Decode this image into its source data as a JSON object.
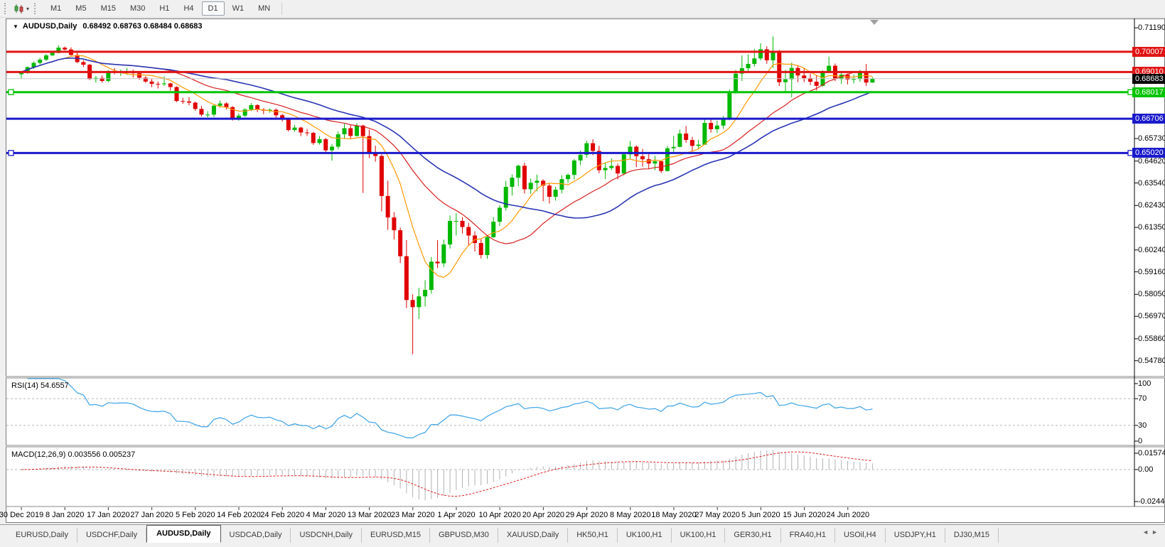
{
  "icons": {
    "chart_menu": "▼",
    "caret_down": "▾",
    "tab_scroll_left": "◄",
    "tab_scroll_right": "►"
  },
  "toolbar": {
    "timeframes": [
      "M1",
      "M5",
      "M15",
      "M30",
      "H1",
      "H4",
      "D1",
      "W1",
      "MN"
    ],
    "active_timeframe": "D1"
  },
  "chart_header": {
    "symbol_period": "AUDUSD,Daily",
    "open": "0.68492",
    "high": "0.68763",
    "low": "0.68484",
    "close": "0.68683",
    "ohlc_text": "0.68492 0.68763 0.68484 0.68683"
  },
  "rsi_panel": {
    "label": "RSI(14) 54.6557",
    "name": "RSI(14)",
    "value": "54.6557",
    "axis_labels": [
      "100",
      "70",
      "30",
      "0"
    ],
    "axis_values": [
      100,
      70,
      30,
      0
    ],
    "levels": [
      70,
      30
    ]
  },
  "macd_panel": {
    "label": "MACD(12,26,9) 0.003556 0.005237",
    "macd_value": "0.003556",
    "signal_value": "0.005237",
    "axis_labels": [
      "0.015741",
      "0.00",
      "-0.024411"
    ],
    "axis_values": [
      0.015741,
      0,
      -0.024411
    ]
  },
  "tabs_bar": {
    "tabs": [
      "EURUSD,Daily",
      "USDCHF,Daily",
      "AUDUSD,Daily",
      "USDCAD,Daily",
      "USDCNH,Daily",
      "EURUSD,M15",
      "GBPUSD,M30",
      "XAUUSD,Daily",
      "HK50,H1",
      "UK100,H1",
      "UK100,H1",
      "GER30,H1",
      "FRA40,H1",
      "USOil,H4",
      "USDJPY,H1",
      "DJ30,M15"
    ],
    "active_index": 2
  },
  "chart_data": {
    "type": "candlestick",
    "symbol": "AUDUSD",
    "timeframe": "Daily",
    "title": "AUDUSD,Daily",
    "current_bid": {
      "label": "0.68683",
      "value": 0.68683
    },
    "y_axis": {
      "tick_labels": [
        "0.71190",
        "0.65730",
        "0.64620",
        "0.63540",
        "0.62430",
        "0.61350",
        "0.60240",
        "0.59160",
        "0.58050",
        "0.56970",
        "0.55860",
        "0.54780"
      ],
      "approx_top": 0.7165,
      "approx_bottom": 0.54
    },
    "x_tick_labels": [
      "30 Dec 2019",
      "8 Jan 2020",
      "17 Jan 2020",
      "27 Jan 2020",
      "5 Feb 2020",
      "14 Feb 2020",
      "24 Feb 2020",
      "4 Mar 2020",
      "13 Mar 2020",
      "23 Mar 2020",
      "1 Apr 2020",
      "10 Apr 2020",
      "20 Apr 2020",
      "29 Apr 2020",
      "8 May 2020",
      "18 May 2020",
      "27 May 2020",
      "5 Jun 2020",
      "15 Jun 2020",
      "24 Jun 2020"
    ],
    "horizontal_lines": [
      {
        "label": "0.70007",
        "value": 0.70007,
        "color": "line_red",
        "width": 3,
        "selected": false
      },
      {
        "label": "0.69010",
        "value": 0.6901,
        "color": "line_red",
        "width": 3,
        "selected": false
      },
      {
        "label": "0.68017",
        "value": 0.68017,
        "color": "line_green",
        "width": 3,
        "selected": true
      },
      {
        "label": "0.66706",
        "value": 0.66706,
        "color": "line_blue",
        "width": 3,
        "selected": false
      },
      {
        "label": "0.65020",
        "value": 0.6502,
        "color": "line_blue",
        "width": 3,
        "selected": true
      }
    ],
    "indicators": {
      "moving_averages": [
        {
          "name": "fast",
          "period": 8,
          "color_key": "ma_fast"
        },
        {
          "name": "medium",
          "period": 21,
          "color_key": "ma_med"
        },
        {
          "name": "slow",
          "period": 34,
          "color_key": "ma_slow"
        }
      ],
      "rsi": {
        "period": 14,
        "current": 54.6557,
        "levels": [
          70,
          30
        ],
        "range": [
          0,
          100
        ]
      },
      "macd": {
        "fast": 12,
        "slow": 26,
        "signal": 9,
        "current_macd": 0.003556,
        "current_signal": 0.005237,
        "axis_max": 0.015741,
        "axis_min": -0.024411
      }
    },
    "colors": {
      "up": "#00b800",
      "down": "#e00000",
      "ma_fast": "#ff9900",
      "ma_med": "#d82020",
      "ma_slow": "#2a35b5",
      "rsi": "#4aa8e8",
      "macd_hist": "#b2b2b2",
      "macd_signal": "#e02020",
      "grid": "#b8b8b8",
      "line_red": "#e01414",
      "line_green": "#00c400",
      "line_blue": "#1a1acc",
      "bid_line": "#c8c8c8",
      "bid_bg": "#000000"
    },
    "ohlc": [
      [
        0.689,
        0.6905,
        0.687,
        0.6901
      ],
      [
        0.6901,
        0.6929,
        0.6892,
        0.6925
      ],
      [
        0.6925,
        0.6952,
        0.6916,
        0.6946
      ],
      [
        0.6946,
        0.6971,
        0.6938,
        0.6962
      ],
      [
        0.6962,
        0.699,
        0.6955,
        0.6983
      ],
      [
        0.6983,
        0.7004,
        0.698,
        0.6995
      ],
      [
        0.6995,
        0.7032,
        0.6993,
        0.7021
      ],
      [
        0.7021,
        0.7027,
        0.7008,
        0.7012
      ],
      [
        0.7012,
        0.7023,
        0.6982,
        0.6985
      ],
      [
        0.6985,
        0.7,
        0.6945,
        0.695
      ],
      [
        0.695,
        0.6959,
        0.6925,
        0.6937
      ],
      [
        0.6937,
        0.6941,
        0.6862,
        0.6866
      ],
      [
        0.6866,
        0.6881,
        0.6849,
        0.6872
      ],
      [
        0.6872,
        0.6884,
        0.685,
        0.6857
      ],
      [
        0.6857,
        0.6911,
        0.6851,
        0.6903
      ],
      [
        0.6903,
        0.692,
        0.689,
        0.6899
      ],
      [
        0.6899,
        0.6913,
        0.6882,
        0.6902
      ],
      [
        0.6902,
        0.6922,
        0.6887,
        0.6903
      ],
      [
        0.6903,
        0.6913,
        0.6874,
        0.6895
      ],
      [
        0.6895,
        0.6899,
        0.6862,
        0.6873
      ],
      [
        0.6873,
        0.688,
        0.6848,
        0.6854
      ],
      [
        0.6854,
        0.6868,
        0.6826,
        0.6843
      ],
      [
        0.6843,
        0.6854,
        0.682,
        0.6841
      ],
      [
        0.6841,
        0.6879,
        0.6832,
        0.6845
      ],
      [
        0.6845,
        0.6848,
        0.681,
        0.6827
      ],
      [
        0.6827,
        0.6831,
        0.6753,
        0.6758
      ],
      [
        0.6758,
        0.6774,
        0.6744,
        0.6756
      ],
      [
        0.6756,
        0.6777,
        0.6737,
        0.675
      ],
      [
        0.675,
        0.6756,
        0.671,
        0.6719
      ],
      [
        0.6719,
        0.6733,
        0.6682,
        0.6691
      ],
      [
        0.6691,
        0.6708,
        0.6678,
        0.6691
      ],
      [
        0.6691,
        0.6739,
        0.668,
        0.6735
      ],
      [
        0.6735,
        0.6761,
        0.6725,
        0.6746
      ],
      [
        0.6746,
        0.6752,
        0.6717,
        0.6728
      ],
      [
        0.6728,
        0.6733,
        0.6662,
        0.6672
      ],
      [
        0.6672,
        0.6697,
        0.6661,
        0.6686
      ],
      [
        0.6686,
        0.6723,
        0.668,
        0.6716
      ],
      [
        0.6716,
        0.6748,
        0.6709,
        0.6738
      ],
      [
        0.6738,
        0.6743,
        0.6703,
        0.6716
      ],
      [
        0.6716,
        0.6723,
        0.6693,
        0.6711
      ],
      [
        0.6711,
        0.6722,
        0.67,
        0.6715
      ],
      [
        0.6715,
        0.6721,
        0.6677,
        0.6688
      ],
      [
        0.6688,
        0.6695,
        0.6657,
        0.6671
      ],
      [
        0.6671,
        0.6675,
        0.6608,
        0.6615
      ],
      [
        0.6615,
        0.664,
        0.6606,
        0.6627
      ],
      [
        0.6627,
        0.6631,
        0.6585,
        0.6603
      ],
      [
        0.6603,
        0.662,
        0.6586,
        0.6601
      ],
      [
        0.6601,
        0.6606,
        0.6542,
        0.6551
      ],
      [
        0.6551,
        0.6585,
        0.6543,
        0.657
      ],
      [
        0.657,
        0.6576,
        0.6503,
        0.6515
      ],
      [
        0.6515,
        0.6546,
        0.6464,
        0.6533
      ],
      [
        0.6533,
        0.6608,
        0.6521,
        0.6594
      ],
      [
        0.6594,
        0.6646,
        0.6571,
        0.6624
      ],
      [
        0.6624,
        0.6639,
        0.6571,
        0.6586
      ],
      [
        0.6586,
        0.6648,
        0.6582,
        0.6637
      ],
      [
        0.6637,
        0.6641,
        0.6305,
        0.6585
      ],
      [
        0.6585,
        0.6617,
        0.6477,
        0.6501
      ],
      [
        0.6501,
        0.6538,
        0.6459,
        0.6487
      ],
      [
        0.6487,
        0.6495,
        0.6214,
        0.629
      ],
      [
        0.629,
        0.6365,
        0.6123,
        0.6184
      ],
      [
        0.6184,
        0.621,
        0.6076,
        0.6121
      ],
      [
        0.6121,
        0.6134,
        0.5959,
        0.5993
      ],
      [
        0.5993,
        0.6073,
        0.5737,
        0.5777
      ],
      [
        0.5777,
        0.5805,
        0.551,
        0.5742
      ],
      [
        0.5742,
        0.5837,
        0.5684,
        0.5795
      ],
      [
        0.5795,
        0.5875,
        0.5745,
        0.5827
      ],
      [
        0.5827,
        0.5989,
        0.5808,
        0.5966
      ],
      [
        0.5966,
        0.6072,
        0.5935,
        0.5958
      ],
      [
        0.5958,
        0.6075,
        0.594,
        0.6051
      ],
      [
        0.6051,
        0.6194,
        0.6031,
        0.6167
      ],
      [
        0.6167,
        0.6205,
        0.6095,
        0.6167
      ],
      [
        0.6167,
        0.6186,
        0.6105,
        0.6137
      ],
      [
        0.6137,
        0.6157,
        0.6045,
        0.6095
      ],
      [
        0.6095,
        0.6116,
        0.6016,
        0.6058
      ],
      [
        0.6058,
        0.6076,
        0.5982,
        0.5999
      ],
      [
        0.5999,
        0.6096,
        0.598,
        0.6087
      ],
      [
        0.6087,
        0.6186,
        0.6083,
        0.6163
      ],
      [
        0.6163,
        0.6244,
        0.6142,
        0.6232
      ],
      [
        0.6232,
        0.6364,
        0.6218,
        0.6335
      ],
      [
        0.6335,
        0.6396,
        0.6292,
        0.638
      ],
      [
        0.638,
        0.6445,
        0.6339,
        0.6439
      ],
      [
        0.6439,
        0.6454,
        0.6302,
        0.6323
      ],
      [
        0.6323,
        0.6376,
        0.63,
        0.6355
      ],
      [
        0.6355,
        0.6395,
        0.6313,
        0.6365
      ],
      [
        0.6365,
        0.6372,
        0.6264,
        0.6341
      ],
      [
        0.6341,
        0.6349,
        0.6253,
        0.6286
      ],
      [
        0.6286,
        0.6335,
        0.6267,
        0.6321
      ],
      [
        0.6321,
        0.6392,
        0.6303,
        0.6373
      ],
      [
        0.6373,
        0.64,
        0.6355,
        0.6394
      ],
      [
        0.6394,
        0.6472,
        0.6371,
        0.6465
      ],
      [
        0.6465,
        0.6514,
        0.6441,
        0.6493
      ],
      [
        0.6493,
        0.6562,
        0.6479,
        0.655
      ],
      [
        0.655,
        0.657,
        0.6491,
        0.6512
      ],
      [
        0.6512,
        0.6537,
        0.6402,
        0.6417
      ],
      [
        0.6417,
        0.6454,
        0.6373,
        0.6428
      ],
      [
        0.6428,
        0.6476,
        0.6418,
        0.6438
      ],
      [
        0.6438,
        0.645,
        0.6372,
        0.6401
      ],
      [
        0.6401,
        0.6503,
        0.6392,
        0.6495
      ],
      [
        0.6495,
        0.6561,
        0.6473,
        0.6533
      ],
      [
        0.6533,
        0.654,
        0.6432,
        0.6486
      ],
      [
        0.6486,
        0.6522,
        0.6434,
        0.6471
      ],
      [
        0.6471,
        0.6497,
        0.6423,
        0.645
      ],
      [
        0.645,
        0.6488,
        0.6417,
        0.6461
      ],
      [
        0.6461,
        0.6462,
        0.6403,
        0.6413
      ],
      [
        0.6413,
        0.6537,
        0.6411,
        0.6525
      ],
      [
        0.6525,
        0.6586,
        0.6505,
        0.6532
      ],
      [
        0.6532,
        0.6617,
        0.653,
        0.6598
      ],
      [
        0.6598,
        0.6635,
        0.6552,
        0.6566
      ],
      [
        0.6566,
        0.6582,
        0.6509,
        0.6537
      ],
      [
        0.6537,
        0.6567,
        0.6523,
        0.6543
      ],
      [
        0.6543,
        0.6675,
        0.6542,
        0.665
      ],
      [
        0.665,
        0.6666,
        0.6602,
        0.6619
      ],
      [
        0.6619,
        0.6661,
        0.66,
        0.6637
      ],
      [
        0.6637,
        0.6684,
        0.6621,
        0.6667
      ],
      [
        0.6667,
        0.6815,
        0.6663,
        0.6797
      ],
      [
        0.6797,
        0.6911,
        0.6795,
        0.6893
      ],
      [
        0.6893,
        0.6983,
        0.6857,
        0.692
      ],
      [
        0.692,
        0.6988,
        0.6905,
        0.6941
      ],
      [
        0.6941,
        0.7015,
        0.6928,
        0.6968
      ],
      [
        0.6968,
        0.7043,
        0.6958,
        0.7013
      ],
      [
        0.7013,
        0.7028,
        0.6942,
        0.6959
      ],
      [
        0.6959,
        0.7077,
        0.6921,
        0.7
      ],
      [
        0.7,
        0.701,
        0.6832,
        0.6851
      ],
      [
        0.6851,
        0.6912,
        0.6799,
        0.6865
      ],
      [
        0.6865,
        0.6948,
        0.6776,
        0.6921
      ],
      [
        0.6921,
        0.6931,
        0.6851,
        0.6884
      ],
      [
        0.6884,
        0.6921,
        0.6851,
        0.6871
      ],
      [
        0.6871,
        0.6894,
        0.6837,
        0.6853
      ],
      [
        0.6853,
        0.6885,
        0.681,
        0.6833
      ],
      [
        0.6833,
        0.691,
        0.6829,
        0.6905
      ],
      [
        0.6905,
        0.6977,
        0.6903,
        0.6932
      ],
      [
        0.6932,
        0.6943,
        0.6856,
        0.6866
      ],
      [
        0.6866,
        0.6902,
        0.6842,
        0.6888
      ],
      [
        0.6888,
        0.6893,
        0.684,
        0.6864
      ],
      [
        0.6864,
        0.6889,
        0.6845,
        0.6866
      ],
      [
        0.6866,
        0.6912,
        0.6853,
        0.6902
      ],
      [
        0.6902,
        0.6941,
        0.6832,
        0.6849
      ],
      [
        0.68492,
        0.68763,
        0.68484,
        0.68683
      ]
    ]
  }
}
